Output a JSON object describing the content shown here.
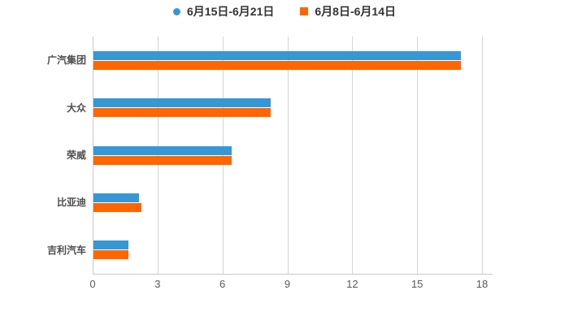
{
  "chart_data": {
    "type": "bar",
    "orientation": "horizontal",
    "title": "",
    "categories": [
      "广汽集团",
      "大众",
      "荣威",
      "比亚迪",
      "吉利汽车"
    ],
    "series": [
      {
        "name": "6月15日-6月21日",
        "color": "#3598d5",
        "marker": "circle",
        "values": [
          17.0,
          8.2,
          6.4,
          2.1,
          1.6
        ]
      },
      {
        "name": "6月8日-6月14日",
        "color": "#ff6600",
        "marker": "square",
        "values": [
          17.0,
          8.2,
          6.4,
          2.2,
          1.6
        ]
      }
    ],
    "xticks": [
      0,
      3,
      6,
      9,
      12,
      15,
      18
    ],
    "xlim": [
      0,
      18.3
    ],
    "grid": true,
    "legend_position": "top",
    "background": "#ffffff"
  }
}
